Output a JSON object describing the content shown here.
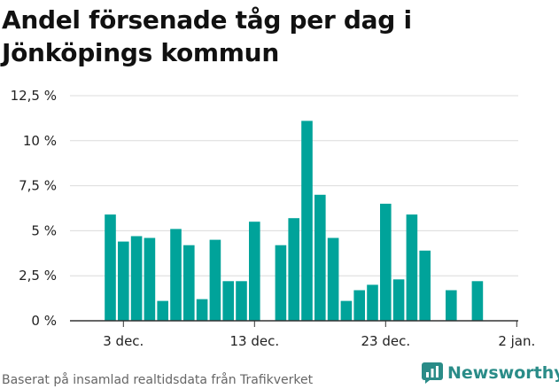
{
  "header": {
    "title": "Andel försenade tåg per dag i Jönköpings kommun"
  },
  "footer": {
    "source": "Baserat på insamlad realtidsdata från Trafikverket"
  },
  "brand": {
    "name": "Newsworthy",
    "icon": "newsworthy-logo-icon",
    "color": "#2a8c88"
  },
  "chart_data": {
    "type": "bar",
    "title": "Andel försenade tåg per dag i Jönköpings kommun",
    "xlabel": "",
    "ylabel": "",
    "ylim": [
      0,
      12.5
    ],
    "yticks": [
      0,
      2.5,
      5,
      7.5,
      10,
      12.5
    ],
    "ytick_labels": [
      "0 %",
      "2,5 %",
      "5 %",
      "7,5 %",
      "10 %",
      "12,5 %"
    ],
    "xticks": [
      {
        "day": 3,
        "label": "3 dec."
      },
      {
        "day": 13,
        "label": "13 dec."
      },
      {
        "day": 23,
        "label": "23 dec."
      },
      {
        "day": 33,
        "label": "2 jan."
      }
    ],
    "bar_color": "#00a39a",
    "grid": true,
    "bars": [
      {
        "date": "2 dec.",
        "day": 2,
        "value": 5.9
      },
      {
        "date": "3 dec.",
        "day": 3,
        "value": 4.4
      },
      {
        "date": "4 dec.",
        "day": 4,
        "value": 4.7
      },
      {
        "date": "5 dec.",
        "day": 5,
        "value": 4.6
      },
      {
        "date": "6 dec.",
        "day": 6,
        "value": 1.1
      },
      {
        "date": "7 dec.",
        "day": 7,
        "value": 5.1
      },
      {
        "date": "8 dec.",
        "day": 8,
        "value": 4.2
      },
      {
        "date": "9 dec.",
        "day": 9,
        "value": 1.2
      },
      {
        "date": "10 dec.",
        "day": 10,
        "value": 4.5
      },
      {
        "date": "11 dec.",
        "day": 11,
        "value": 2.2
      },
      {
        "date": "12 dec.",
        "day": 12,
        "value": 2.2
      },
      {
        "date": "13 dec.",
        "day": 13,
        "value": 5.5
      },
      {
        "date": "15 dec.",
        "day": 15,
        "value": 4.2
      },
      {
        "date": "16 dec.",
        "day": 16,
        "value": 5.7
      },
      {
        "date": "17 dec.",
        "day": 17,
        "value": 11.1
      },
      {
        "date": "18 dec.",
        "day": 18,
        "value": 7.0
      },
      {
        "date": "19 dec.",
        "day": 19,
        "value": 4.6
      },
      {
        "date": "20 dec.",
        "day": 20,
        "value": 1.1
      },
      {
        "date": "21 dec.",
        "day": 21,
        "value": 1.7
      },
      {
        "date": "22 dec.",
        "day": 22,
        "value": 2.0
      },
      {
        "date": "23 dec.",
        "day": 23,
        "value": 6.5
      },
      {
        "date": "24 dec.",
        "day": 24,
        "value": 2.3
      },
      {
        "date": "25 dec.",
        "day": 25,
        "value": 5.9
      },
      {
        "date": "26 dec.",
        "day": 26,
        "value": 3.9
      },
      {
        "date": "28 dec.",
        "day": 28,
        "value": 1.7
      },
      {
        "date": "30 dec.",
        "day": 30,
        "value": 2.2
      }
    ]
  }
}
